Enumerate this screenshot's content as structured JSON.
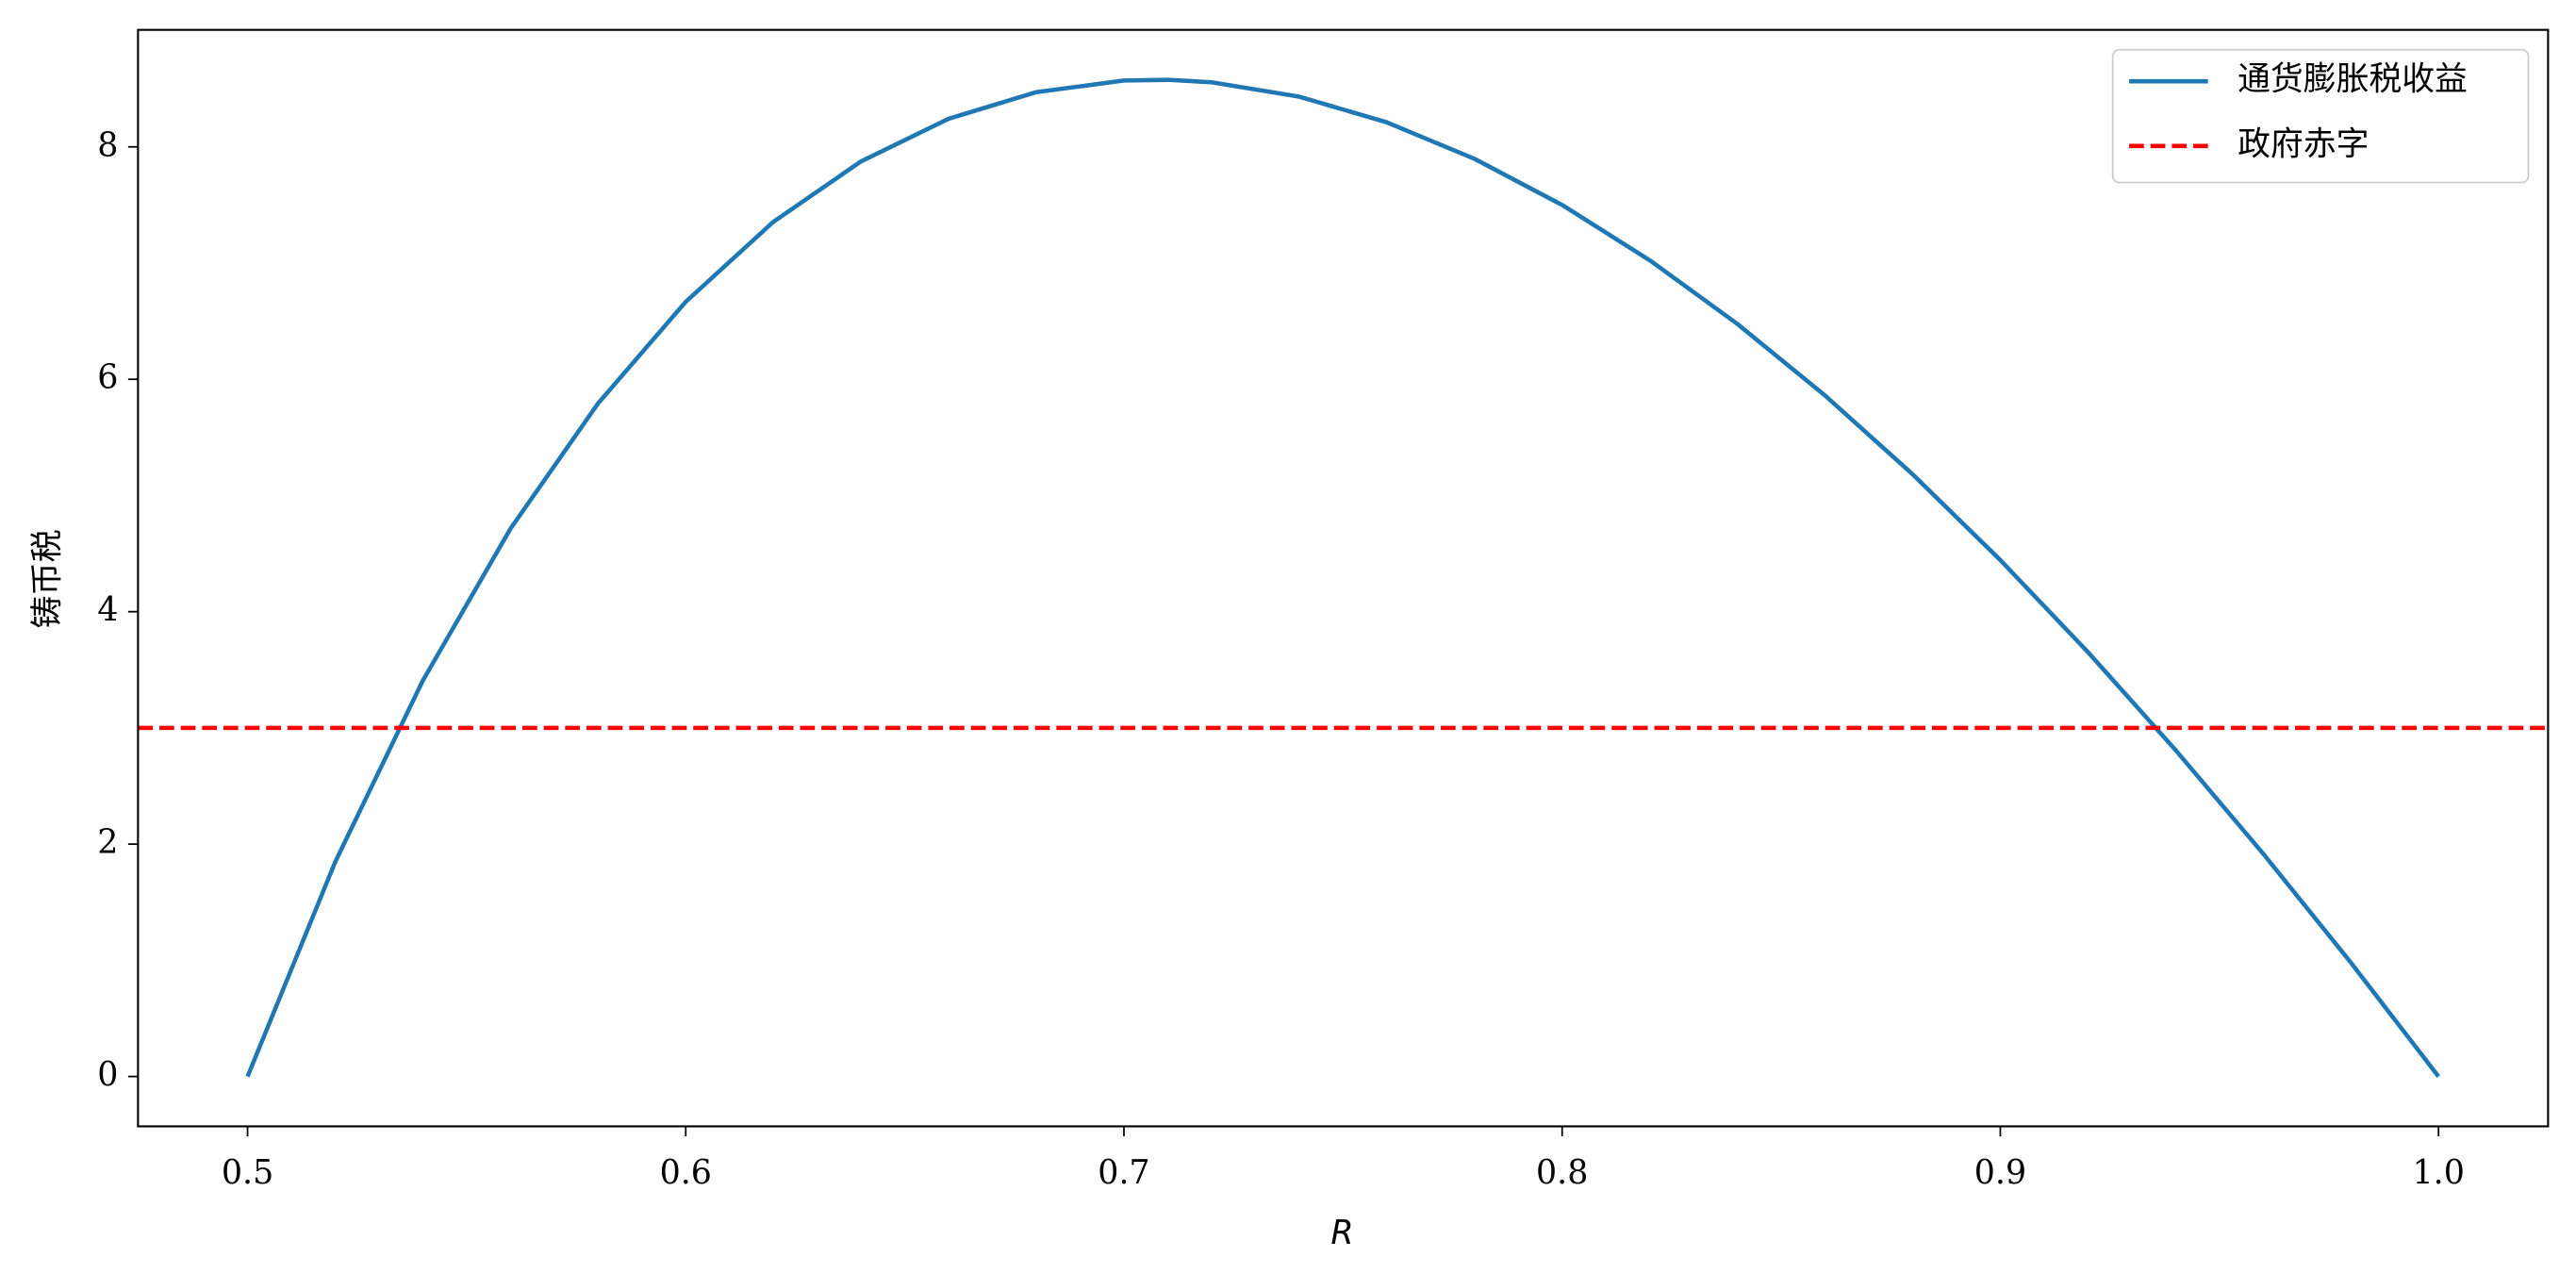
{
  "chart_data": {
    "type": "line",
    "xlabel": "R",
    "ylabel": "铸币税",
    "x": [
      0.5,
      0.52,
      0.54,
      0.56,
      0.58,
      0.6,
      0.62,
      0.64,
      0.66,
      0.68,
      0.7,
      0.71,
      0.72,
      0.74,
      0.76,
      0.78,
      0.8,
      0.82,
      0.84,
      0.86,
      0.88,
      0.9,
      0.92,
      0.94,
      0.96,
      0.98,
      1.0
    ],
    "series": [
      {
        "name": "通货膨胀税收益",
        "color": "#1f77b4",
        "values": [
          0,
          1.846,
          3.407,
          4.714,
          5.793,
          6.667,
          7.355,
          7.875,
          8.242,
          8.471,
          8.571,
          8.577,
          8.556,
          8.432,
          8.211,
          7.897,
          7.5,
          7.024,
          6.476,
          5.86,
          5.182,
          4.444,
          3.652,
          2.809,
          1.917,
          0.98,
          0
        ]
      }
    ],
    "hlines": [
      {
        "name": "政府赤字",
        "color": "#ff0000",
        "value": 3,
        "style": "dashed"
      }
    ],
    "xlim": [
      0.475,
      1.025
    ],
    "ylim": [
      -0.429,
      9.007
    ],
    "xticks": [
      0.5,
      0.6,
      0.7,
      0.8,
      0.9,
      {
        "value": 1.0,
        "label": "1.0"
      }
    ],
    "yticks": [
      0,
      2,
      4,
      6,
      8
    ],
    "grid": false,
    "legend": "upper right"
  }
}
